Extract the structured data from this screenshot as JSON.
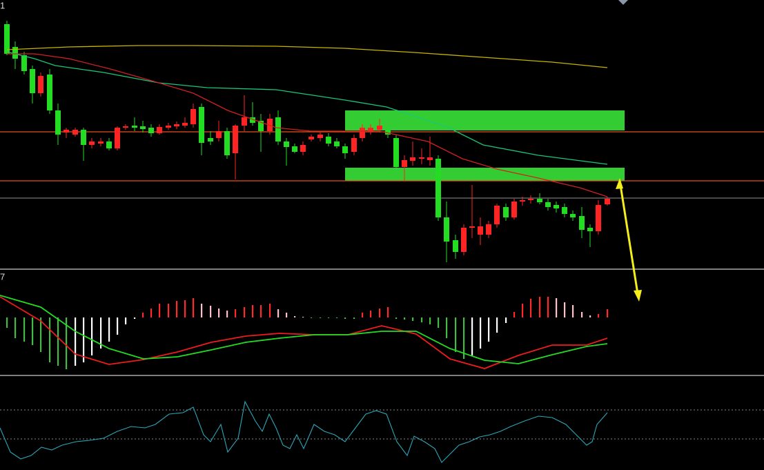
{
  "chart_data": [
    {
      "type": "candlestick",
      "label": "1",
      "xlim": [
        0,
        1107
      ],
      "ylim": [
        10,
        400
      ],
      "up_color": "#ff2424",
      "down_color": "#22dd22",
      "x": [
        10,
        22,
        35,
        47,
        59,
        72,
        84,
        96,
        109,
        121,
        133,
        146,
        158,
        170,
        182,
        195,
        207,
        219,
        231,
        244,
        256,
        268,
        280,
        292,
        305,
        317,
        329,
        341,
        354,
        366,
        378,
        391,
        403,
        415,
        427,
        439,
        451,
        464,
        476,
        488,
        500,
        513,
        525,
        537,
        550,
        562,
        574,
        586,
        598,
        611,
        623,
        635,
        647,
        660,
        672,
        684,
        696,
        708,
        720,
        733,
        745,
        757,
        769,
        782,
        794,
        806,
        818,
        830,
        843,
        855,
        867,
        880
      ],
      "open": [
        365,
        332,
        320,
        300,
        265,
        292,
        240,
        208,
        205,
        212,
        190,
        192,
        195,
        185,
        215,
        218,
        217,
        215,
        207,
        215,
        217,
        218,
        220,
        245,
        200,
        200,
        210,
        178,
        218,
        230,
        225,
        210,
        230,
        195,
        188,
        180,
        198,
        200,
        202,
        195,
        188,
        180,
        200,
        210,
        212,
        212,
        200,
        158,
        167,
        170,
        168,
        170,
        85,
        52,
        35,
        70,
        60,
        60,
        75,
        100,
        85,
        108,
        110,
        112,
        107,
        103,
        100,
        90,
        87,
        70,
        65,
        104
      ],
      "high": [
        370,
        340,
        325,
        305,
        295,
        300,
        250,
        215,
        215,
        215,
        200,
        200,
        200,
        217,
        220,
        230,
        225,
        220,
        220,
        222,
        224,
        230,
        250,
        250,
        210,
        225,
        215,
        220,
        262,
        252,
        235,
        235,
        240,
        200,
        192,
        195,
        205,
        210,
        207,
        200,
        192,
        205,
        220,
        220,
        228,
        216,
        205,
        175,
        195,
        185,
        202,
        175,
        108,
        60,
        75,
        132,
        85,
        80,
        105,
        105,
        112,
        115,
        117,
        120,
        112,
        108,
        105,
        95,
        100,
        75,
        110,
        115
      ],
      "low": [
        320,
        300,
        292,
        250,
        260,
        235,
        190,
        200,
        202,
        167,
        185,
        188,
        182,
        182,
        212,
        210,
        208,
        202,
        205,
        212,
        213,
        215,
        215,
        175,
        190,
        195,
        170,
        140,
        210,
        218,
        180,
        205,
        190,
        160,
        178,
        175,
        195,
        195,
        188,
        185,
        170,
        175,
        195,
        205,
        208,
        200,
        155,
        138,
        160,
        162,
        160,
        80,
        20,
        25,
        30,
        55,
        45,
        55,
        70,
        80,
        82,
        102,
        105,
        104,
        95,
        92,
        85,
        80,
        55,
        42,
        60,
        102
      ],
      "close": [
        322,
        315,
        297,
        265,
        290,
        240,
        205,
        212,
        212,
        190,
        195,
        195,
        185,
        215,
        217,
        215,
        213,
        207,
        216,
        218,
        220,
        222,
        242,
        193,
        195,
        210,
        175,
        218,
        230,
        222,
        210,
        228,
        195,
        187,
        180,
        190,
        202,
        205,
        192,
        188,
        178,
        200,
        215,
        215,
        218,
        205,
        158,
        168,
        172,
        172,
        172,
        85,
        50,
        35,
        70,
        72,
        72,
        75,
        102,
        85,
        108,
        110,
        112,
        107,
        100,
        98,
        90,
        85,
        67,
        65,
        103,
        112
      ],
      "series": [
        {
          "color": "#c8b400",
          "x": [
            10,
            100,
            200,
            280,
            400,
            500,
            600,
            700,
            800,
            880
          ],
          "values": [
            328,
            332,
            334,
            334,
            333,
            330,
            324,
            317,
            310,
            302
          ]
        },
        {
          "color": "#18c878",
          "x": [
            10,
            50,
            80,
            150,
            230,
            300,
            400,
            500,
            560,
            600,
            650,
            700,
            780,
            880
          ],
          "values": [
            325,
            315,
            305,
            295,
            280,
            273,
            270,
            255,
            245,
            232,
            215,
            190,
            175,
            162
          ]
        },
        {
          "color": "#d42020",
          "x": [
            10,
            50,
            100,
            160,
            230,
            280,
            330,
            400,
            450,
            550,
            620,
            670,
            720,
            780,
            840,
            880
          ],
          "values": [
            322,
            322,
            315,
            300,
            280,
            265,
            240,
            215,
            210,
            210,
            195,
            170,
            155,
            142,
            128,
            115
          ]
        }
      ],
      "hlines": [
        {
          "value": 209,
          "color": "#e8521c"
        },
        {
          "value": 138,
          "color": "#e8521c"
        },
        {
          "value": 113,
          "color": "#777777"
        }
      ],
      "zones": [
        {
          "x": [
            500,
            905
          ],
          "y": [
            211,
            240
          ]
        },
        {
          "x": [
            500,
            905
          ],
          "y": [
            138,
            157
          ]
        }
      ],
      "zone_color": "#33cc33"
    },
    {
      "type": "macd",
      "label": "7",
      "xlim": [
        0,
        1107
      ],
      "ylim": [
        -83,
        68
      ],
      "bar_colors": {
        "up": "#ff2a2a",
        "up_fade": "#ffc0c8",
        "down": "#44bb44",
        "down_fade": "#ffffff"
      },
      "x": [
        10,
        22,
        35,
        47,
        59,
        72,
        84,
        96,
        109,
        121,
        133,
        146,
        158,
        170,
        182,
        195,
        207,
        219,
        231,
        244,
        256,
        268,
        280,
        292,
        305,
        317,
        329,
        341,
        354,
        366,
        378,
        391,
        403,
        415,
        427,
        439,
        451,
        464,
        476,
        488,
        500,
        513,
        525,
        537,
        550,
        562,
        574,
        586,
        598,
        611,
        623,
        635,
        647,
        660,
        672,
        684,
        696,
        708,
        720,
        733,
        745,
        757,
        769,
        782,
        794,
        806,
        818,
        830,
        843,
        855,
        867,
        880
      ],
      "values": [
        -15,
        -30,
        -35,
        -40,
        -50,
        -65,
        -70,
        -75,
        -70,
        -65,
        -55,
        -45,
        -35,
        -25,
        -10,
        -2,
        7,
        13,
        20,
        20,
        24,
        25,
        28,
        20,
        17,
        13,
        10,
        12,
        15,
        18,
        18,
        20,
        12,
        7,
        2,
        1,
        -1,
        -1,
        -1,
        -1,
        -2,
        -2,
        7,
        10,
        13,
        15,
        -2,
        -3,
        -5,
        -7,
        -10,
        -15,
        -30,
        -50,
        -60,
        -55,
        -45,
        -35,
        -22,
        -8,
        8,
        20,
        27,
        30,
        30,
        28,
        22,
        18,
        8,
        3,
        5,
        12
      ],
      "series": [
        {
          "color": "#ee1c1c",
          "x": [
            0,
            59,
            109,
            158,
            208,
            257,
            306,
            356,
            405,
            455,
            504,
            553,
            603,
            652,
            702,
            751,
            800,
            850,
            880
          ],
          "values": [
            30,
            -5,
            -53,
            -68,
            -61,
            -50,
            -36,
            -27,
            -23,
            -25,
            -25,
            -12,
            -24,
            -60,
            -74,
            -55,
            -40,
            -40,
            -30
          ]
        },
        {
          "color": "#22dd22",
          "x": [
            0,
            59,
            109,
            158,
            208,
            257,
            306,
            356,
            405,
            455,
            504,
            553,
            603,
            652,
            702,
            751,
            800,
            850,
            880
          ],
          "values": [
            32,
            15,
            -20,
            -45,
            -60,
            -57,
            -47,
            -36,
            -30,
            -25,
            -25,
            -20,
            -20,
            -45,
            -62,
            -67,
            -54,
            -42,
            -38
          ]
        }
      ]
    },
    {
      "type": "line",
      "xlim": [
        0,
        1107
      ],
      "ylim": [
        0,
        135
      ],
      "color": "#2aa8b8",
      "refs": [
        87,
        45
      ],
      "x": [
        0,
        15,
        30,
        45,
        60,
        75,
        90,
        110,
        130,
        150,
        170,
        190,
        210,
        225,
        245,
        265,
        280,
        295,
        305,
        320,
        330,
        345,
        355,
        370,
        380,
        390,
        400,
        410,
        420,
        430,
        440,
        455,
        470,
        485,
        500,
        515,
        530,
        545,
        560,
        575,
        590,
        600,
        615,
        630,
        640,
        650,
        665,
        680,
        695,
        710,
        725,
        740,
        760,
        780,
        800,
        820,
        835,
        850,
        858,
        865,
        880
      ],
      "values": [
        61,
        26,
        16,
        21,
        33,
        29,
        36,
        41,
        43,
        46,
        56,
        63,
        61,
        66,
        81,
        83,
        91,
        51,
        41,
        66,
        26,
        46,
        99,
        71,
        56,
        81,
        61,
        36,
        31,
        51,
        31,
        66,
        56,
        51,
        41,
        61,
        81,
        86,
        81,
        41,
        21,
        49,
        41,
        31,
        11,
        21,
        36,
        41,
        48,
        51,
        56,
        63,
        71,
        78,
        76,
        66,
        51,
        36,
        41,
        66,
        83
      ]
    }
  ]
}
